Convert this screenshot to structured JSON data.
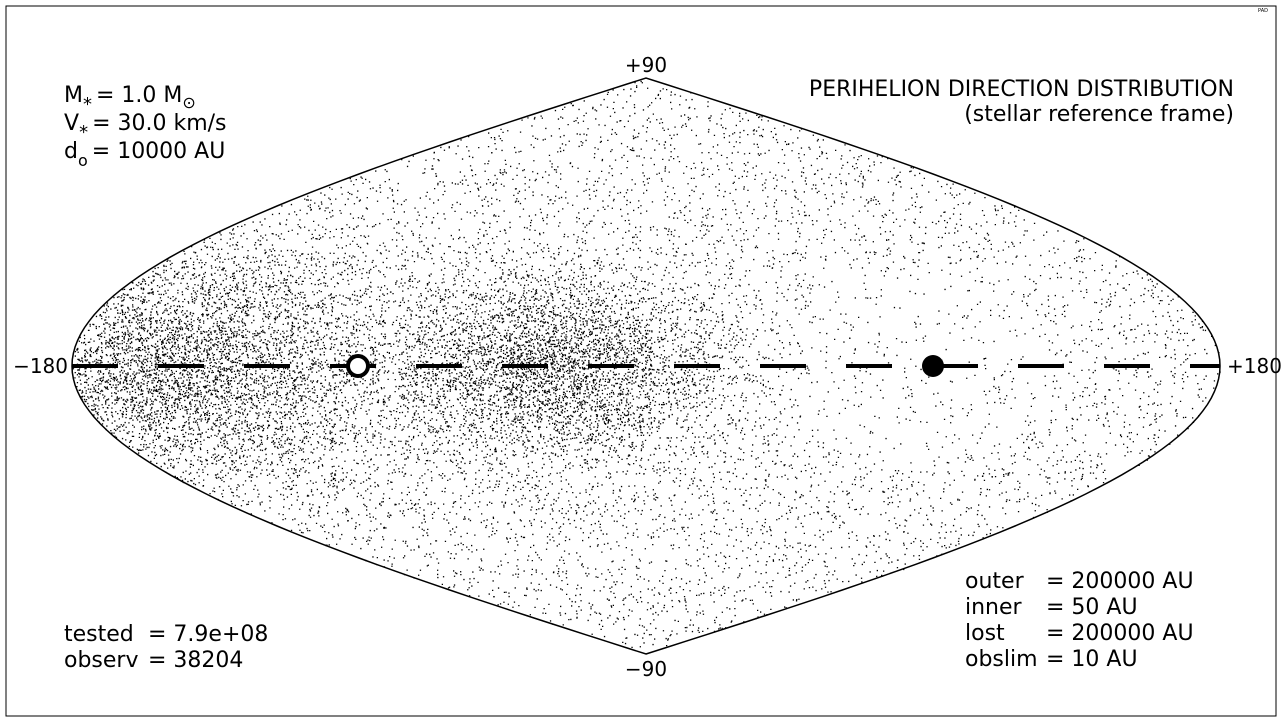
{
  "corner_tag": "PAD",
  "parameters": {
    "mass": {
      "prefix": "M",
      "sub": "*",
      "value": "= 1.0 M",
      "unit_sub": "⊙"
    },
    "velocity": {
      "prefix": "V",
      "sub": "*",
      "value": "= 30.0 km/s"
    },
    "distance": {
      "prefix": "d",
      "sub": "o",
      "value": "= 10000 AU"
    }
  },
  "title": {
    "line1": "PERIHELION DIRECTION DISTRIBUTION",
    "line2": "(stellar reference frame)"
  },
  "stats": {
    "tested": {
      "label": "tested",
      "value": "= 7.9e+08"
    },
    "observ": {
      "label": "observ",
      "value": "= 38204"
    }
  },
  "limits": [
    {
      "label": "outer",
      "value": "= 200000 AU"
    },
    {
      "label": "inner",
      "value": "= 50 AU"
    },
    {
      "label": "lost",
      "value": "= 200000 AU"
    },
    {
      "label": "obslim",
      "value": "= 10 AU"
    }
  ],
  "chart_data": {
    "type": "scatter",
    "projection": "sinusoidal",
    "x_range": [
      -180,
      180
    ],
    "y_range": [
      -90,
      90
    ],
    "tick_labels": {
      "left": "−180",
      "right": "+180",
      "top": "+90",
      "bottom": "−90"
    },
    "equator": "dashed",
    "point_count_shown": "dense (≈38204 observed)",
    "markers": [
      {
        "kind": "open-circle",
        "longitude": -90,
        "latitude": 0
      },
      {
        "kind": "filled-circle",
        "longitude": 90,
        "latitude": 0
      }
    ],
    "density_clusters": [
      {
        "longitude": -150,
        "latitude": 0,
        "spread_lon": 35,
        "spread_lat": 18,
        "weight": 0.32
      },
      {
        "longitude": -30,
        "latitude": 0,
        "spread_lon": 28,
        "spread_lat": 15,
        "weight": 0.25
      }
    ],
    "background_weight": 0.43
  }
}
